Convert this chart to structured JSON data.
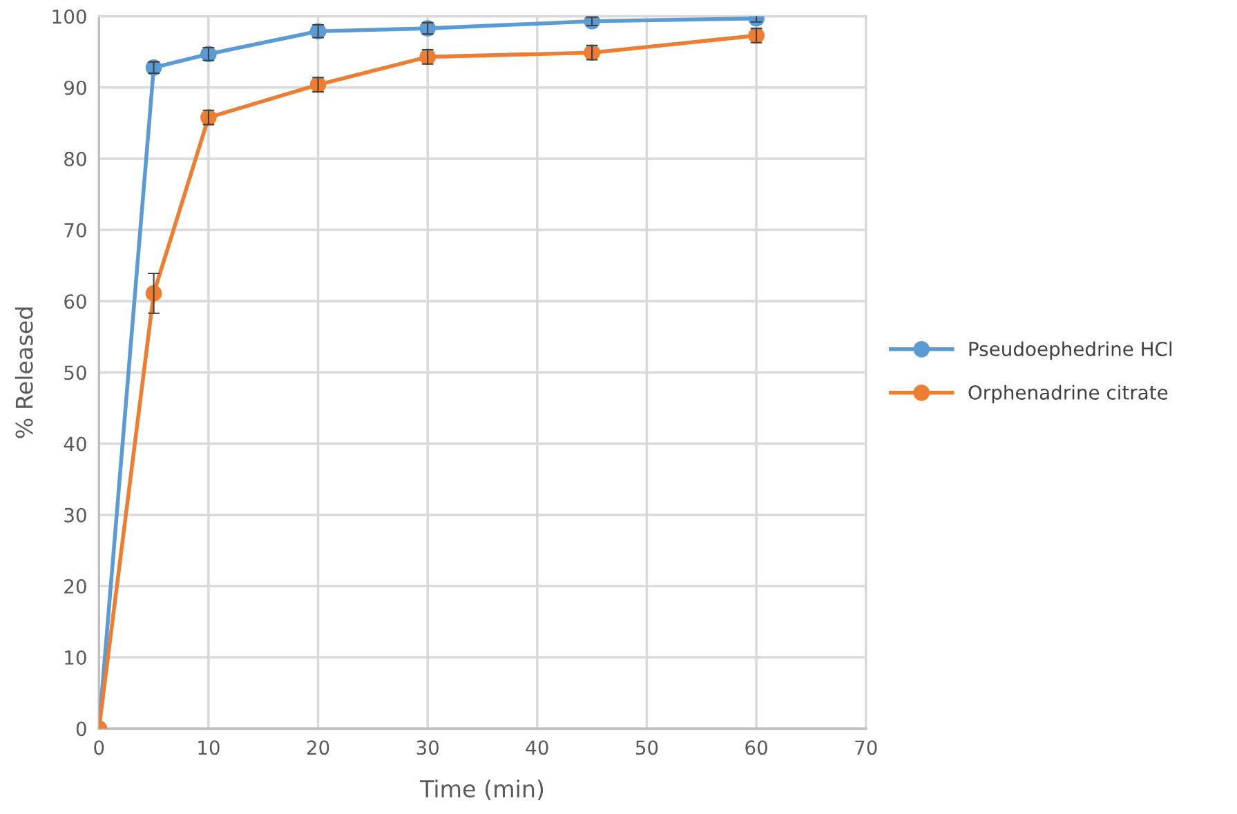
{
  "chart_data": {
    "type": "line",
    "xlabel": "Time (min)",
    "ylabel": "% Released",
    "x": [
      0,
      5,
      10,
      20,
      30,
      45,
      60
    ],
    "series": [
      {
        "name": "Pseudoephedrine HCl",
        "color": "#5b9bd5",
        "values": [
          0,
          92.8,
          94.7,
          97.9,
          98.3,
          99.3,
          99.7
        ],
        "errors": [
          null,
          0.8,
          0.9,
          0.9,
          0.8,
          0.6,
          0.5
        ]
      },
      {
        "name": "Orphenadrine citrate",
        "color": "#ed7d31",
        "values": [
          0,
          61.1,
          85.8,
          90.4,
          94.3,
          94.9,
          97.3
        ],
        "errors": [
          null,
          2.8,
          1.0,
          1.0,
          1.0,
          1.0,
          1.0
        ]
      }
    ],
    "xlim": [
      0,
      70
    ],
    "xticks": [
      0,
      10,
      20,
      30,
      40,
      50,
      60,
      70
    ],
    "ylim": [
      0,
      100
    ],
    "yticks": [
      0,
      10,
      20,
      30,
      40,
      50,
      60,
      70,
      80,
      90,
      100
    ],
    "grid": true,
    "legend": "right",
    "marker": "circle",
    "line_style": "solid"
  }
}
